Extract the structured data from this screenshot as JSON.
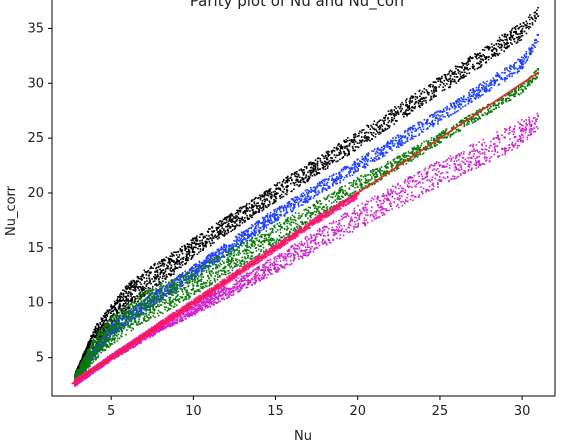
{
  "chart_data": {
    "type": "scatter",
    "title": "Parity plot of Nu and Nu_corr",
    "xlabel": "Nu",
    "ylabel": "Nu_corr",
    "xlim": [
      1.4,
      32.0
    ],
    "ylim": [
      1.5,
      38.5
    ],
    "xticks": [
      5,
      10,
      15,
      20,
      25,
      30
    ],
    "yticks": [
      5,
      10,
      15,
      20,
      25,
      30,
      35
    ],
    "grid": false,
    "legend": "none",
    "series": [
      {
        "kind": "scatter",
        "color": "#000000",
        "x": [
          2.8,
          4,
          5,
          6,
          7,
          8,
          9,
          10,
          12,
          15,
          20,
          25,
          30,
          31
        ],
        "y": [
          3.2,
          6.8,
          8.7,
          10.5,
          11.8,
          12.8,
          13.8,
          15.0,
          17.0,
          20.0,
          24.8,
          29.8,
          34.8,
          36.5
        ],
        "spread": [
          0.3,
          1.0,
          1.1,
          1.2,
          1.2,
          1.1,
          1.0,
          0.9,
          0.8,
          0.8,
          0.8,
          0.8,
          0.8,
          0.5
        ]
      },
      {
        "kind": "scatter",
        "color": "#1f3fff",
        "x": [
          2.8,
          5,
          8,
          10,
          15,
          20,
          25,
          30,
          31
        ],
        "y": [
          3.0,
          7.5,
          10.8,
          12.8,
          18.0,
          22.5,
          27.0,
          31.8,
          34.2
        ],
        "spread": [
          0.3,
          0.6,
          0.6,
          0.6,
          0.6,
          0.6,
          0.6,
          0.6,
          0.4
        ]
      },
      {
        "kind": "scatter",
        "color": "#0b7a0b",
        "x": [
          2.8,
          4,
          5,
          6,
          7,
          8,
          9,
          10,
          12,
          15,
          18,
          20,
          22,
          25,
          30,
          31
        ],
        "y": [
          3.0,
          5.8,
          7.4,
          8.6,
          9.6,
          10.3,
          11.0,
          11.8,
          13.6,
          16.2,
          18.8,
          20.6,
          22.4,
          25.0,
          29.5,
          31.0
        ],
        "spread": [
          0.4,
          1.1,
          1.3,
          1.4,
          1.4,
          1.4,
          1.3,
          1.2,
          1.1,
          1.0,
          0.9,
          0.8,
          0.6,
          0.5,
          0.4,
          0.4
        ]
      },
      {
        "kind": "scatter",
        "color": "#cc22cc",
        "x": [
          2.8,
          5,
          8,
          10,
          15,
          20,
          25,
          30,
          31
        ],
        "y": [
          2.6,
          5.0,
          7.8,
          9.3,
          13.5,
          17.8,
          21.8,
          25.5,
          26.5
        ],
        "spread": [
          0.2,
          0.3,
          0.4,
          0.5,
          0.8,
          1.1,
          1.2,
          1.2,
          0.8
        ]
      },
      {
        "kind": "scatter",
        "color": "#ff1493",
        "x": [
          2.8,
          5,
          8,
          10,
          15,
          18,
          20
        ],
        "y": [
          2.8,
          5.0,
          8.0,
          10.0,
          15.0,
          18.0,
          19.8
        ],
        "spread": [
          0.2,
          0.2,
          0.3,
          0.3,
          0.3,
          0.3,
          0.3
        ]
      },
      {
        "kind": "line",
        "color": "#e8281e",
        "x": [
          2.6,
          31.0
        ],
        "y": [
          2.6,
          31.0
        ]
      }
    ]
  }
}
